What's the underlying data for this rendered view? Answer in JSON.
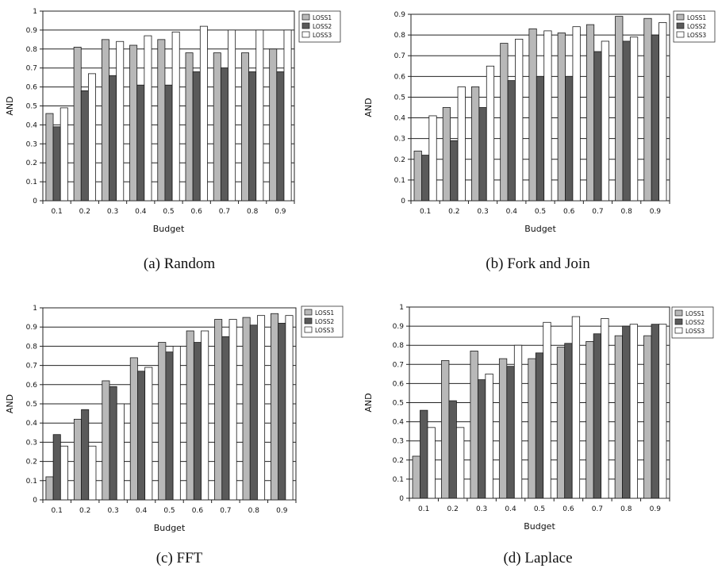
{
  "chart_data": [
    {
      "type": "bar",
      "caption": "(a) Random",
      "xlabel": "Budget",
      "ylabel": "AND",
      "ylim": [
        0,
        1
      ],
      "yticks": [
        "0",
        "0.1",
        "0.2",
        "0.3",
        "0.4",
        "0.5",
        "0.6",
        "0.7",
        "0.8",
        "0.9",
        "1"
      ],
      "categories": [
        "0.1",
        "0.2",
        "0.3",
        "0.4",
        "0.5",
        "0.6",
        "0.7",
        "0.8",
        "0.9"
      ],
      "legend_position": "top-right",
      "grid": "horizontal",
      "series": [
        {
          "name": "LOSS1",
          "color": "#b8b8b8",
          "values": [
            0.46,
            0.81,
            0.85,
            0.82,
            0.85,
            0.78,
            0.78,
            0.78,
            0.8
          ]
        },
        {
          "name": "LOSS2",
          "color": "#5a5a5a",
          "values": [
            0.39,
            0.58,
            0.66,
            0.61,
            0.61,
            0.68,
            0.7,
            0.68,
            0.68
          ]
        },
        {
          "name": "LOSS3",
          "color": "#ffffff",
          "values": [
            0.49,
            0.67,
            0.84,
            0.87,
            0.89,
            0.92,
            0.9,
            0.9,
            0.9
          ]
        }
      ]
    },
    {
      "type": "bar",
      "caption": "(b) Fork and Join",
      "xlabel": "Budget",
      "ylabel": "AND",
      "ylim": [
        0,
        0.9
      ],
      "yticks": [
        "0",
        "0.1",
        "0.2",
        "0.3",
        "0.4",
        "0.5",
        "0.6",
        "0.7",
        "0.8",
        "0.9"
      ],
      "categories": [
        "0.1",
        "0.2",
        "0.3",
        "0.4",
        "0.5",
        "0.6",
        "0.7",
        "0.8",
        "0.9"
      ],
      "legend_position": "top-right",
      "grid": "horizontal",
      "series": [
        {
          "name": "LOSS1",
          "color": "#b8b8b8",
          "values": [
            0.24,
            0.45,
            0.55,
            0.76,
            0.83,
            0.81,
            0.85,
            0.89,
            0.88
          ]
        },
        {
          "name": "LOSS2",
          "color": "#5a5a5a",
          "values": [
            0.22,
            0.29,
            0.45,
            0.58,
            0.6,
            0.6,
            0.72,
            0.77,
            0.8
          ]
        },
        {
          "name": "LOSS3",
          "color": "#ffffff",
          "values": [
            0.41,
            0.55,
            0.65,
            0.78,
            0.82,
            0.84,
            0.77,
            0.79,
            0.86
          ]
        }
      ]
    },
    {
      "type": "bar",
      "caption": "(c) FFT",
      "xlabel": "Budget",
      "ylabel": "AND",
      "ylim": [
        0,
        1
      ],
      "yticks": [
        "0",
        "0.1",
        "0.2",
        "0.3",
        "0.4",
        "0.5",
        "0.6",
        "0.7",
        "0.8",
        "0.9",
        "1"
      ],
      "categories": [
        "0.1",
        "0.2",
        "0.3",
        "0.4",
        "0.5",
        "0.6",
        "0.7",
        "0.8",
        "0.9"
      ],
      "legend_position": "top-right",
      "grid": "horizontal",
      "series": [
        {
          "name": "LOSS1",
          "color": "#b8b8b8",
          "values": [
            0.12,
            0.42,
            0.62,
            0.74,
            0.82,
            0.88,
            0.94,
            0.95,
            0.97
          ]
        },
        {
          "name": "LOSS2",
          "color": "#5a5a5a",
          "values": [
            0.34,
            0.47,
            0.59,
            0.67,
            0.77,
            0.82,
            0.85,
            0.91,
            0.92
          ]
        },
        {
          "name": "LOSS3",
          "color": "#ffffff",
          "values": [
            0.28,
            0.28,
            0.5,
            0.69,
            0.8,
            0.88,
            0.94,
            0.96,
            0.96
          ]
        }
      ]
    },
    {
      "type": "bar",
      "caption": "(d) Laplace",
      "xlabel": "Budget",
      "ylabel": "AND",
      "ylim": [
        0,
        1
      ],
      "yticks": [
        "0",
        "0.1",
        "0.2",
        "0.3",
        "0.4",
        "0.5",
        "0.6",
        "0.7",
        "0.8",
        "0.9",
        "1"
      ],
      "categories": [
        "0.1",
        "0.2",
        "0.3",
        "0.4",
        "0.5",
        "0.6",
        "0.7",
        "0.8",
        "0.9"
      ],
      "legend_position": "top-right",
      "grid": "horizontal",
      "series": [
        {
          "name": "LOSS1",
          "color": "#b8b8b8",
          "values": [
            0.22,
            0.72,
            0.77,
            0.73,
            0.73,
            0.79,
            0.82,
            0.85,
            0.85
          ]
        },
        {
          "name": "LOSS2",
          "color": "#5a5a5a",
          "values": [
            0.46,
            0.51,
            0.62,
            0.69,
            0.76,
            0.81,
            0.86,
            0.9,
            0.91
          ]
        },
        {
          "name": "LOSS3",
          "color": "#ffffff",
          "values": [
            0.37,
            0.37,
            0.65,
            0.8,
            0.92,
            0.95,
            0.94,
            0.91,
            0.91
          ]
        }
      ]
    }
  ]
}
